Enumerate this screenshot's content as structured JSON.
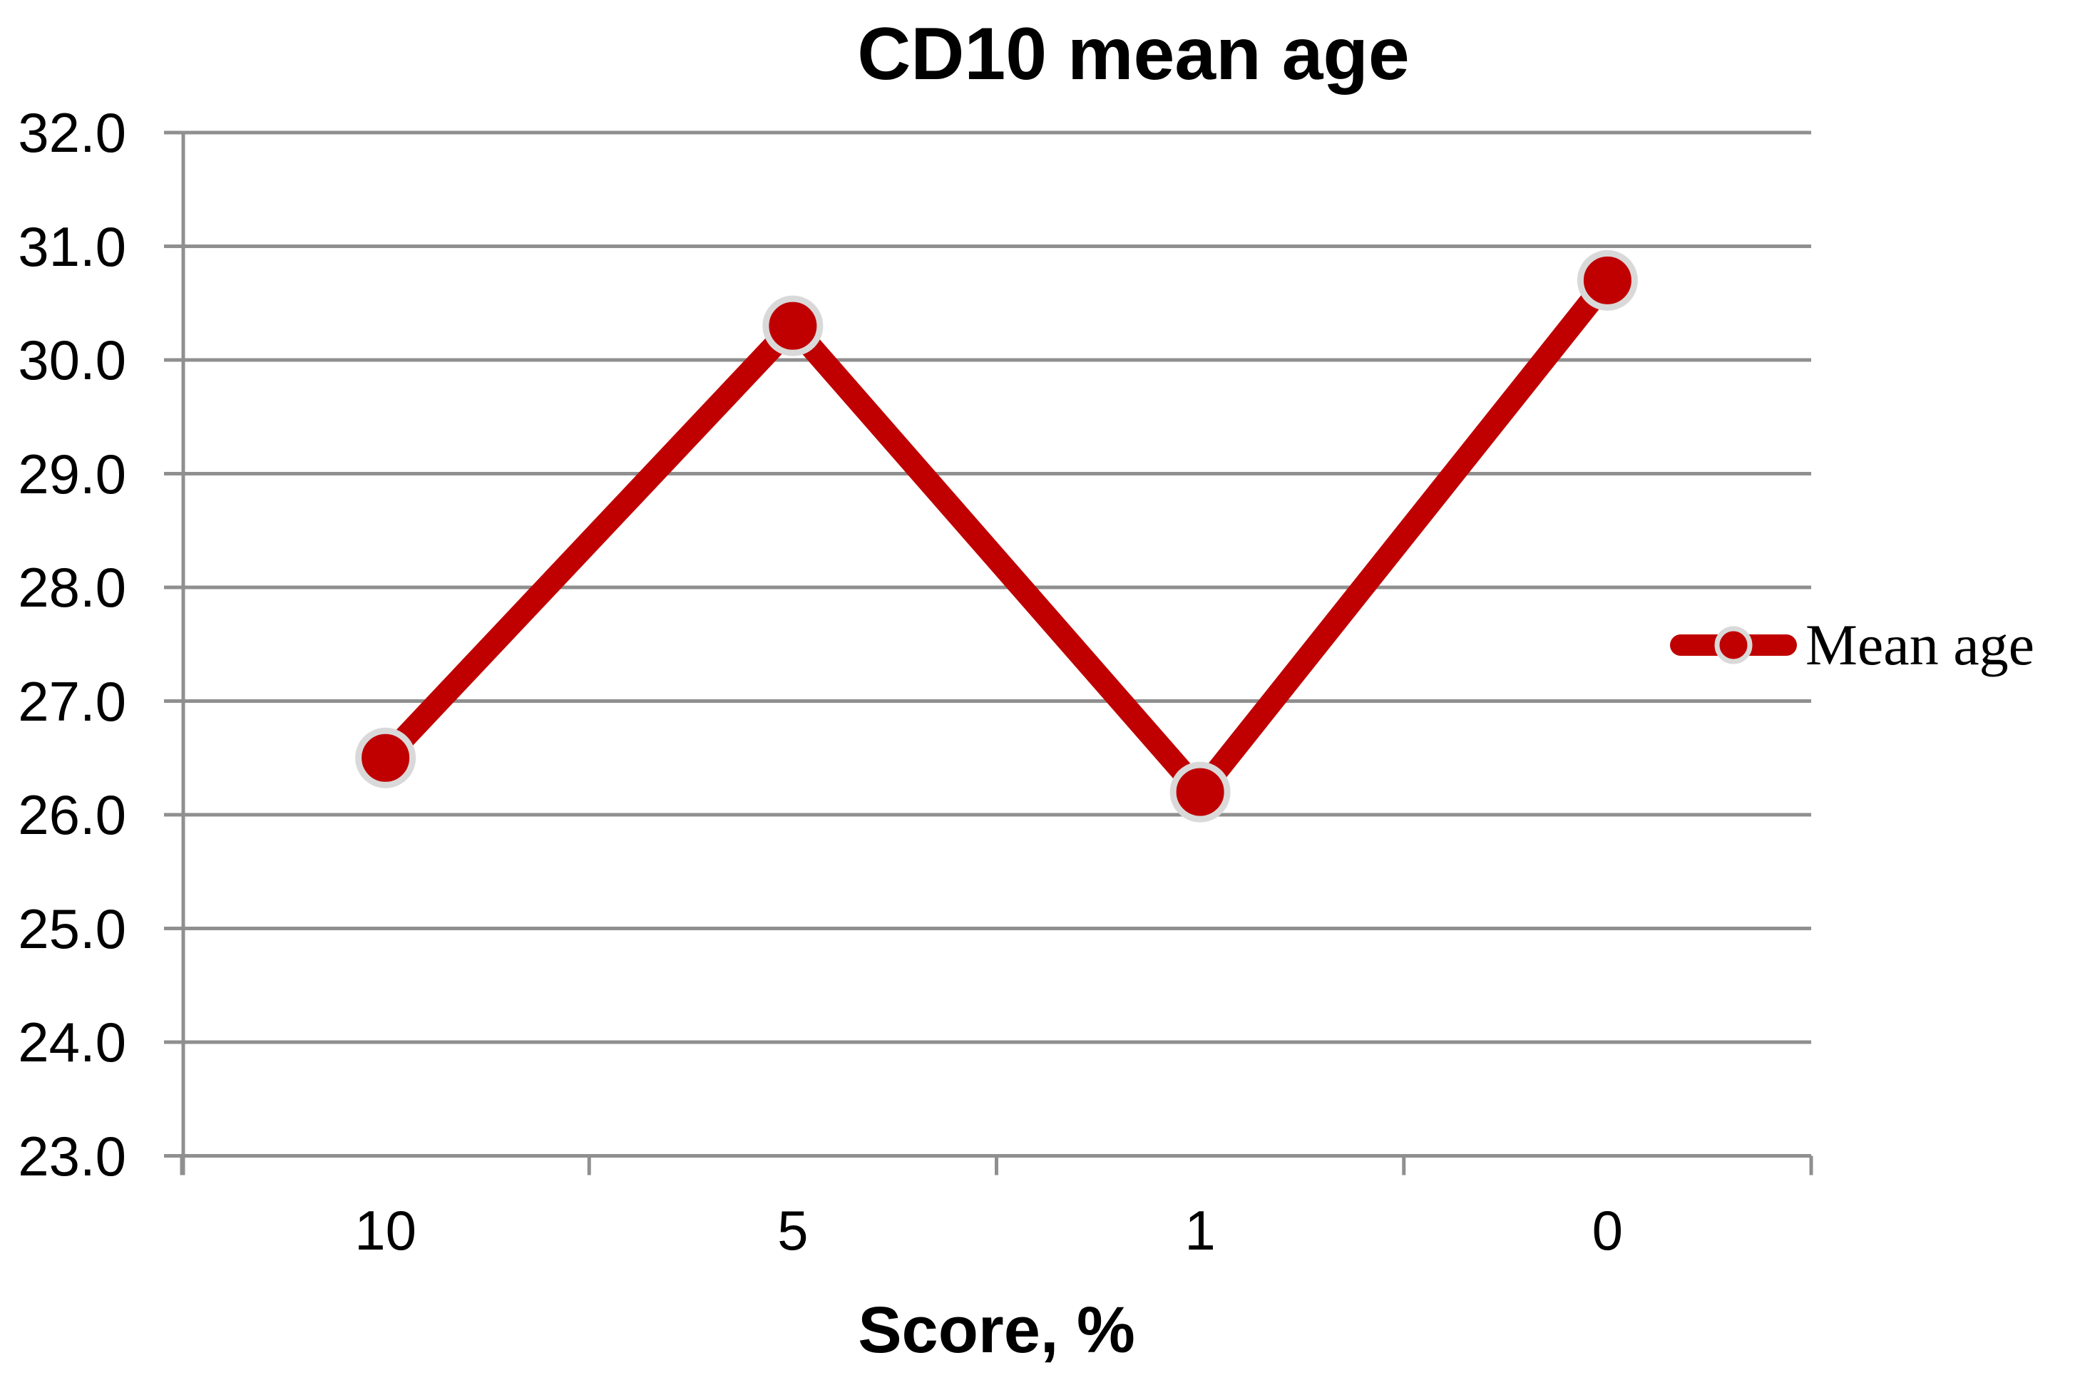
{
  "chart_data": {
    "type": "line",
    "title": "CD10 mean age",
    "xlabel": "Score, %",
    "ylabel": "",
    "categories": [
      "10",
      "5",
      "1",
      "0"
    ],
    "series": [
      {
        "name": "Mean age",
        "values": [
          26.5,
          30.3,
          26.2,
          30.7
        ]
      }
    ],
    "ylim": [
      23.0,
      32.0
    ],
    "y_ticks": [
      23,
      24,
      25,
      26,
      27,
      28,
      29,
      30,
      31,
      32
    ],
    "y_tick_labels": [
      "23.0",
      "24.0",
      "25.0",
      "26.0",
      "27.0",
      "28.0",
      "29.0",
      "30.0",
      "31.0",
      "32.0"
    ],
    "grid": "horizontal",
    "legend_position": "right",
    "marker": "circle",
    "colors": {
      "series": "#C00000",
      "marker_outline": "#D9D9D9",
      "gridline": "#8F8F8F",
      "axis": "#8F8F8F",
      "text": "#000000",
      "background": "#FFFFFF"
    }
  }
}
